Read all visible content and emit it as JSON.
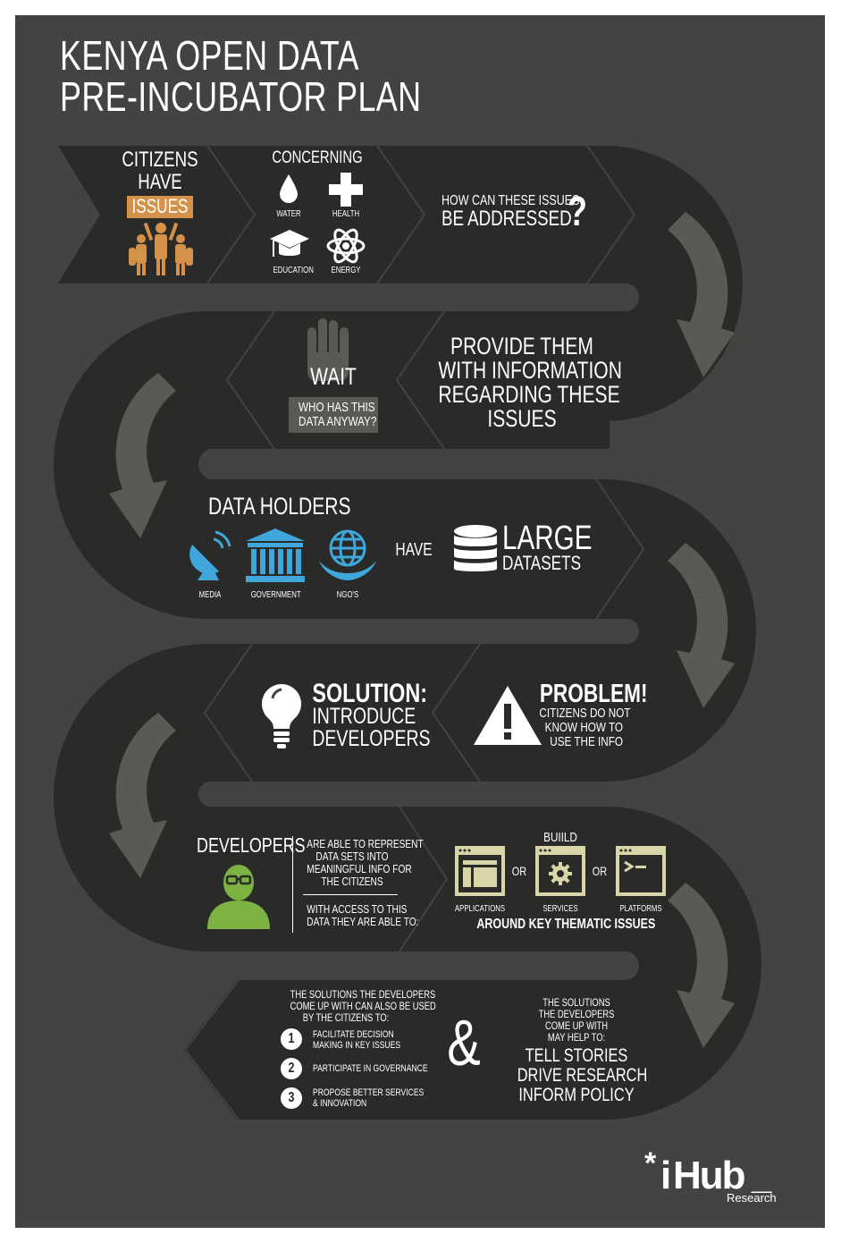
{
  "title": {
    "line1": "KENYA OPEN DATA",
    "line2": "PRE-INCUBATOR PLAN"
  },
  "colors": {
    "background": "#444341",
    "band": "#2a2a28",
    "arrow": "#5a5956",
    "orange": "#d4914a",
    "blue": "#3fa7dc",
    "green": "#7cb342",
    "olive": "#d8d6a8"
  },
  "row1": {
    "citizens": "CITIZENS",
    "have": "HAVE",
    "issues": "ISSUES",
    "concerning": "CONCERNING",
    "concerns": [
      {
        "label": "WATER",
        "icon": "water-drop-icon"
      },
      {
        "label": "HEALTH",
        "icon": "health-cross-icon"
      },
      {
        "label": "EDUCATION",
        "icon": "graduation-cap-icon"
      },
      {
        "label": "ENERGY",
        "icon": "atom-icon"
      }
    ],
    "question_line1": "HOW CAN THESE ISSUES",
    "question_line2": "BE ADDRESSED",
    "question_mark": "?"
  },
  "row2": {
    "wait": "WAIT",
    "who_line1": "WHO HAS THIS",
    "who_line2": "DATA ANYWAY?",
    "provide": [
      "PROVIDE THEM",
      "WITH INFORMATION",
      "REGARDING THESE",
      "ISSUES"
    ]
  },
  "row3": {
    "data_holders": "DATA HOLDERS",
    "holders": [
      {
        "label": "MEDIA",
        "icon": "satellite-dish-icon"
      },
      {
        "label": "GOVERNMENT",
        "icon": "government-building-icon"
      },
      {
        "label": "NGO's",
        "icon": "globe-hands-icon"
      }
    ],
    "have": "HAVE",
    "large": "LARGE",
    "datasets": "DATASETS"
  },
  "row4": {
    "solution": "SOLUTION:",
    "introduce": "INTRODUCE",
    "developers": "DEVELOPERS",
    "problem": "PROBLEM!",
    "problem_lines": [
      "CITIZENS DO NOT",
      "KNOW HOW TO",
      "USE THE INFO"
    ]
  },
  "row5": {
    "developers": "DEVELOPERS",
    "able_lines": [
      "ARE ABLE TO REPRESENT",
      "DATA SETS INTO",
      "MEANINGFUL INFO FOR",
      "THE CITIZENS"
    ],
    "access_lines": [
      "WITH ACCESS TO THIS",
      "DATA THEY ARE ABLE TO:"
    ],
    "build": "BUIILD",
    "or": "OR",
    "products": [
      {
        "label": "APPLICATIONS",
        "icon": "application-window-icon"
      },
      {
        "label": "SERVICES",
        "icon": "gear-window-icon"
      },
      {
        "label": "PLATFORMS",
        "icon": "terminal-window-icon"
      }
    ],
    "thematic": "AROUND KEY THEMATIC ISSUES"
  },
  "row6": {
    "used_lines": [
      "THE SOLUTIONS THE DEVELOPERS",
      "COME UP WITH CAN ALSO BE USED",
      "BY THE CITIZENS TO:"
    ],
    "items": [
      {
        "num": "1",
        "line1": "FACILITATE DECISION",
        "line2": "MAKING IN KEY ISSUES"
      },
      {
        "num": "2",
        "line1": "PARTICIPATE IN GOVERNANCE",
        "line2": ""
      },
      {
        "num": "3",
        "line1": "PROPOSE BETTER SERVICES",
        "line2": "& INNOVATION"
      }
    ],
    "ampersand": "&",
    "help_lines": [
      "THE SOLUTIONS",
      "THE DEVELOPERS",
      "COME UP WITH",
      "MAY HELP TO:"
    ],
    "outcomes": [
      "TELL STORIES",
      "DRIVE RESEARCH",
      "INFORM POLICY"
    ]
  },
  "logo": {
    "star": "*",
    "i": "i",
    "hub": "Hub",
    "underscore": "_",
    "research": "Research"
  }
}
